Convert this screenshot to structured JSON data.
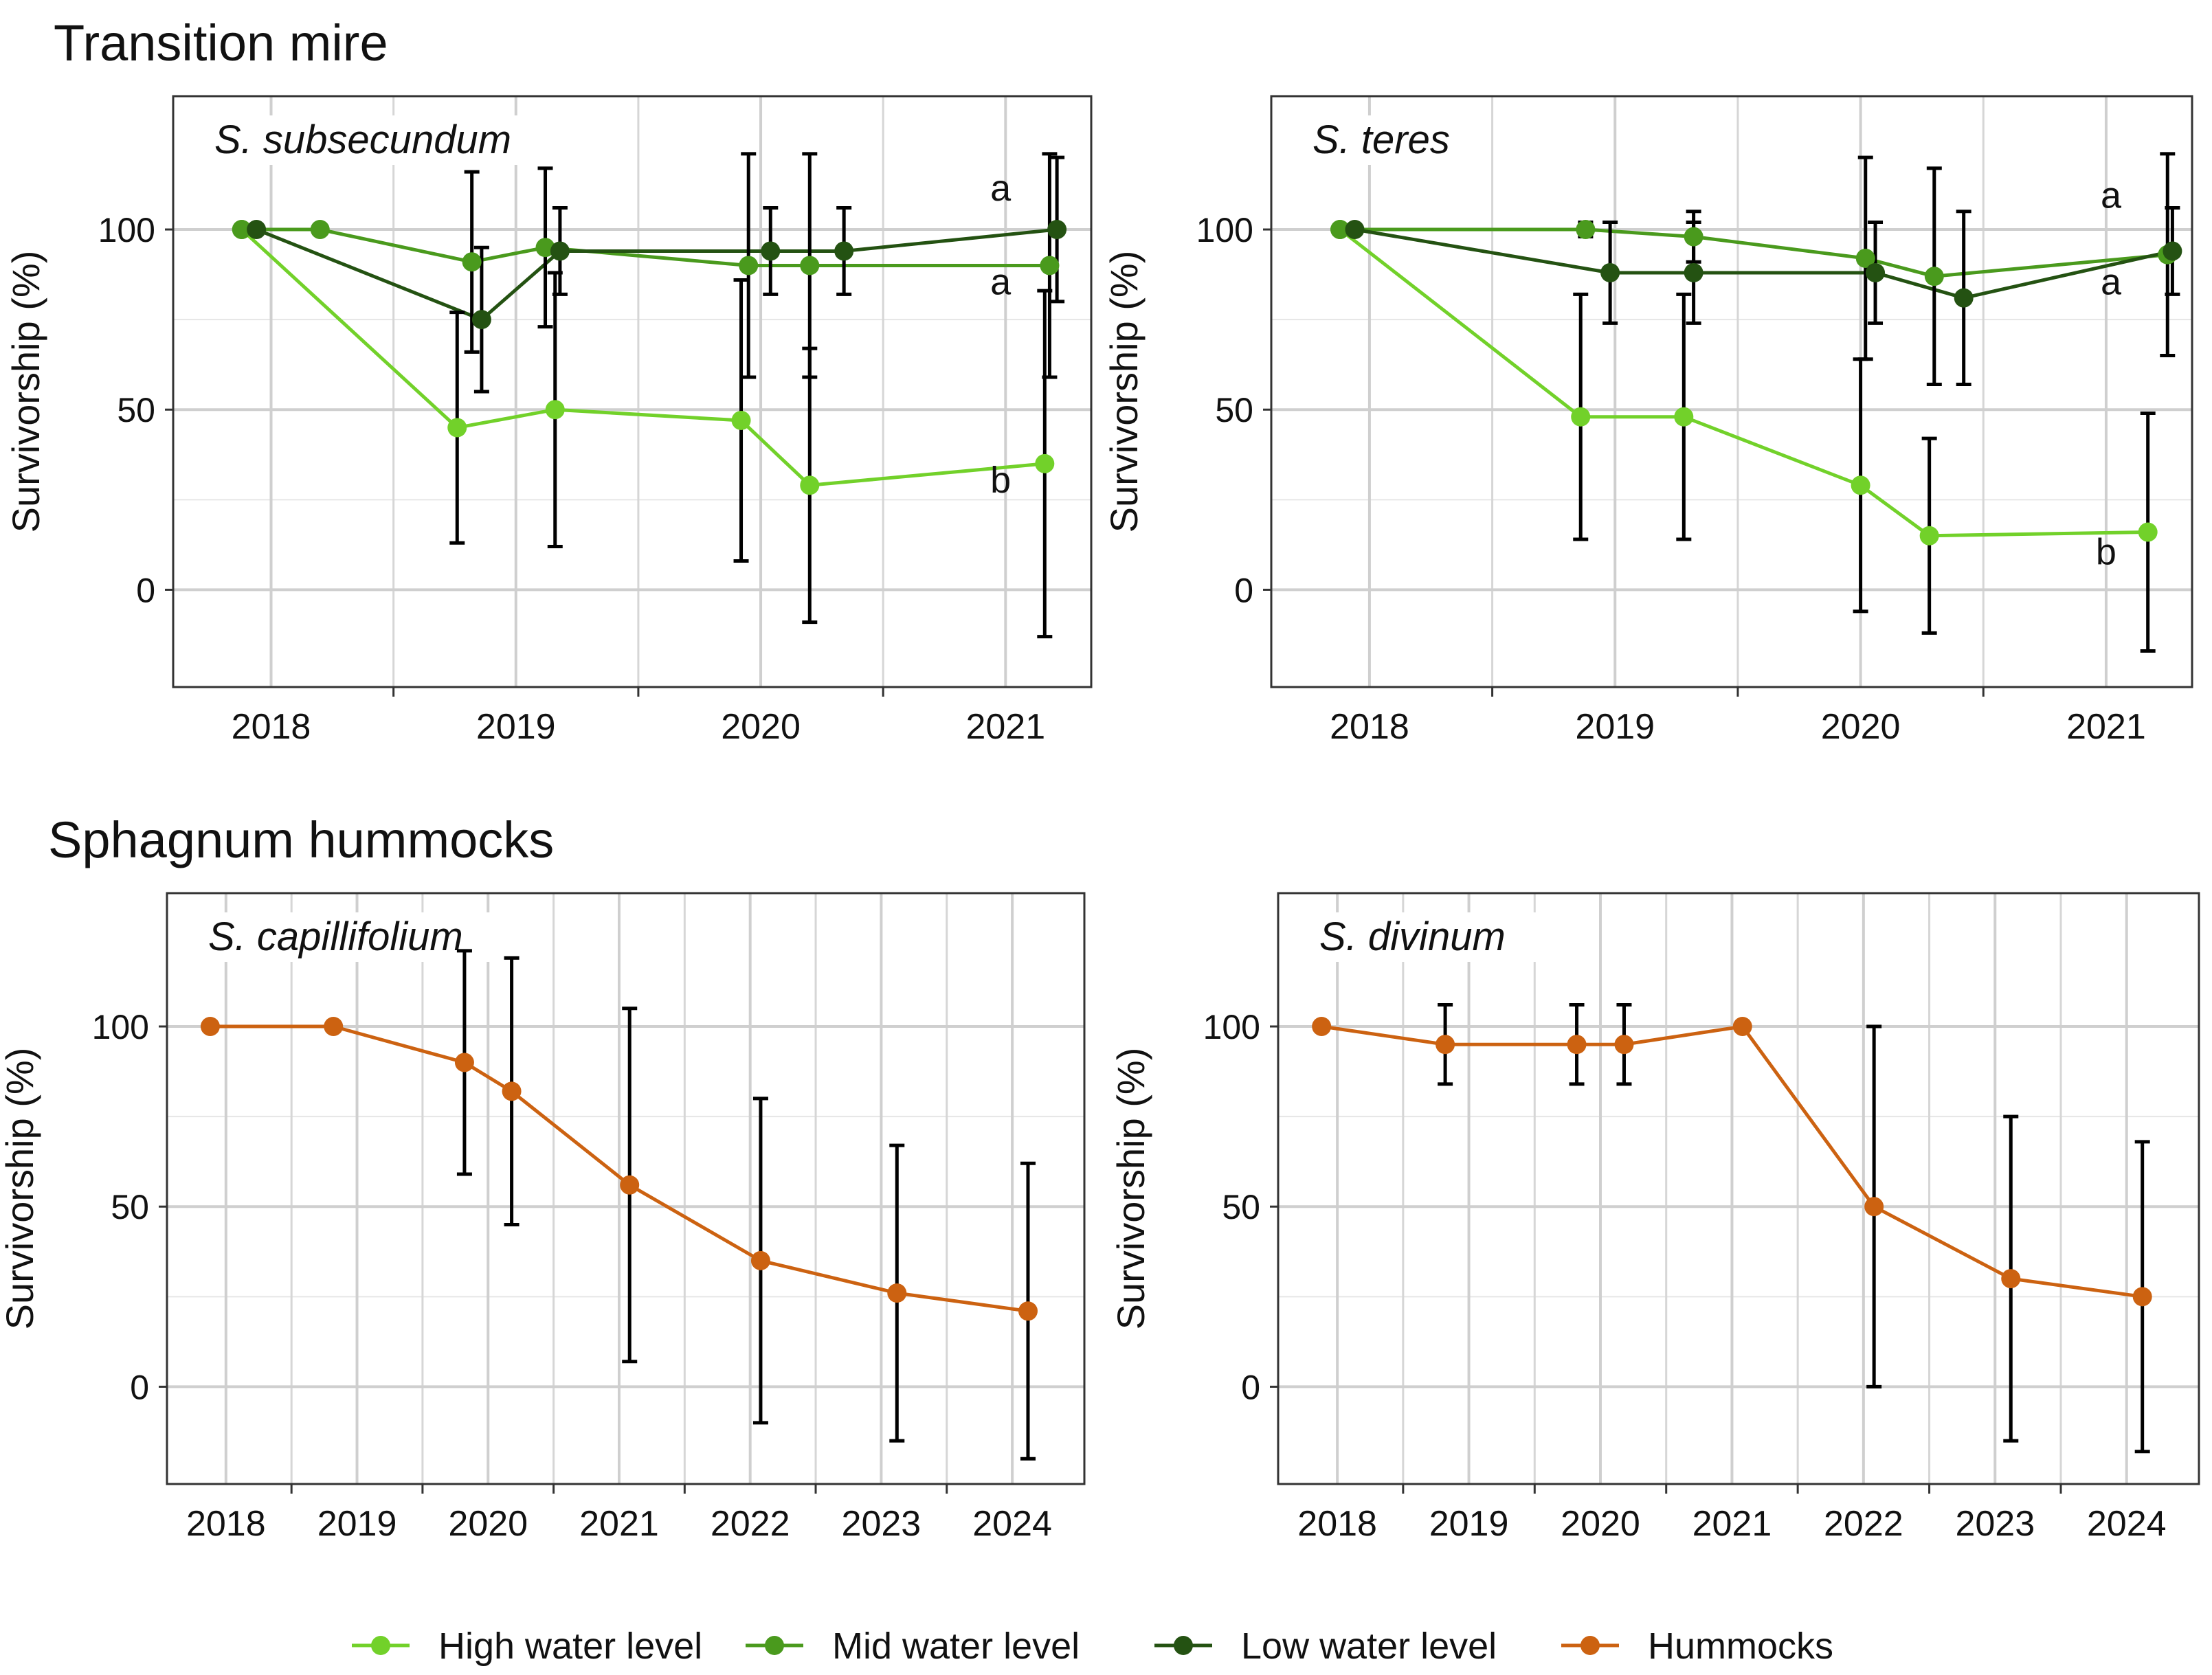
{
  "sections": [
    {
      "title": "Transition mire"
    },
    {
      "title": "Sphagnum hummocks"
    }
  ],
  "colors": {
    "High water level": "#72d12a",
    "Mid water level": "#4a9a1d",
    "Low water level": "#245212",
    "Hummocks": "#cc6211"
  },
  "legend": [
    {
      "name": "High water level"
    },
    {
      "name": "Mid water level"
    },
    {
      "name": "Low water level"
    },
    {
      "name": "Hummocks"
    }
  ],
  "chart_data": [
    {
      "type": "line",
      "title": "S. subsecundum",
      "xlabel": "",
      "ylabel": "Survivorship (%)",
      "xlim": [
        2017.6,
        2021.35
      ],
      "ylim": [
        -27,
        137
      ],
      "xticks": [
        2018,
        2019,
        2020,
        2021
      ],
      "yticks": [
        0,
        50,
        100
      ],
      "sig_letters": [
        {
          "text": "a",
          "x": 2020.98,
          "y": 108
        },
        {
          "text": "a",
          "x": 2020.98,
          "y": 82
        },
        {
          "text": "b",
          "x": 2020.98,
          "y": 27
        }
      ],
      "series": [
        {
          "name": "High water level",
          "x": [
            2017.88,
            2018.76,
            2019.16,
            2019.92,
            2020.2,
            2021.16
          ],
          "y": [
            100,
            45,
            50,
            47,
            29,
            35
          ],
          "err": [
            0,
            32,
            38,
            39,
            38,
            48
          ]
        },
        {
          "name": "Mid water level",
          "x": [
            2017.88,
            2018.2,
            2018.82,
            2019.12,
            2019.95,
            2020.2,
            2021.18
          ],
          "y": [
            100,
            100,
            91,
            95,
            90,
            90,
            90
          ],
          "err": [
            0,
            0,
            25,
            22,
            31,
            31,
            31
          ]
        },
        {
          "name": "Low water level",
          "x": [
            2017.94,
            2018.86,
            2019.18,
            2020.04,
            2020.34,
            2021.21
          ],
          "y": [
            100,
            75,
            94,
            94,
            94,
            100
          ],
          "err": [
            0,
            20,
            12,
            12,
            12,
            20
          ]
        }
      ]
    },
    {
      "type": "line",
      "title": "S. teres",
      "xlabel": "",
      "ylabel": "Survivorship (%)",
      "xlim": [
        2017.6,
        2021.35
      ],
      "ylim": [
        -27,
        137
      ],
      "xticks": [
        2018,
        2019,
        2020,
        2021
      ],
      "yticks": [
        0,
        50,
        100
      ],
      "sig_letters": [
        {
          "text": "a",
          "x": 2021.02,
          "y": 106
        },
        {
          "text": "a",
          "x": 2021.02,
          "y": 82
        },
        {
          "text": "b",
          "x": 2021.0,
          "y": 7
        }
      ],
      "series": [
        {
          "name": "High water level",
          "x": [
            2017.88,
            2018.86,
            2019.28,
            2020.0,
            2020.28,
            2021.17
          ],
          "y": [
            100,
            48,
            48,
            29,
            15,
            16
          ],
          "err": [
            0,
            34,
            34,
            35,
            27,
            33
          ]
        },
        {
          "name": "Mid water level",
          "x": [
            2017.88,
            2018.88,
            2019.32,
            2020.02,
            2020.3,
            2021.25
          ],
          "y": [
            100,
            100,
            98,
            92,
            87,
            93
          ],
          "err": [
            0,
            2,
            7,
            28,
            30,
            28
          ]
        },
        {
          "name": "Low water level",
          "x": [
            2017.94,
            2018.98,
            2019.32,
            2020.06,
            2020.42,
            2021.27
          ],
          "y": [
            100,
            88,
            88,
            88,
            81,
            94
          ],
          "err": [
            0,
            14,
            14,
            14,
            24,
            12
          ]
        }
      ]
    },
    {
      "type": "line",
      "title": "S. capillifolium",
      "xlabel": "",
      "ylabel": "Survivorship (%)",
      "xlim": [
        2017.55,
        2024.55
      ],
      "ylim": [
        -27,
        137
      ],
      "xticks": [
        2018,
        2019,
        2020,
        2021,
        2022,
        2023,
        2024
      ],
      "yticks": [
        0,
        50,
        100
      ],
      "series": [
        {
          "name": "Hummocks",
          "x": [
            2017.88,
            2018.82,
            2019.82,
            2020.18,
            2021.08,
            2022.08,
            2023.12,
            2024.12
          ],
          "y": [
            100,
            100,
            90,
            82,
            56,
            35,
            26,
            21
          ],
          "err": [
            0,
            0,
            31,
            37,
            49,
            45,
            41,
            41
          ]
        }
      ]
    },
    {
      "type": "line",
      "title": "S. divinum",
      "xlabel": "",
      "ylabel": "Survivorship (%)",
      "xlim": [
        2017.55,
        2024.55
      ],
      "ylim": [
        -27,
        137
      ],
      "xticks": [
        2018,
        2019,
        2020,
        2021,
        2022,
        2023,
        2024
      ],
      "yticks": [
        0,
        50,
        100
      ],
      "series": [
        {
          "name": "Hummocks",
          "x": [
            2017.88,
            2018.82,
            2019.82,
            2020.18,
            2021.08,
            2022.08,
            2023.12,
            2024.12
          ],
          "y": [
            100,
            95,
            95,
            95,
            100,
            50,
            30,
            25
          ],
          "err": [
            0,
            11,
            11,
            11,
            0,
            50,
            45,
            43
          ]
        }
      ]
    }
  ]
}
